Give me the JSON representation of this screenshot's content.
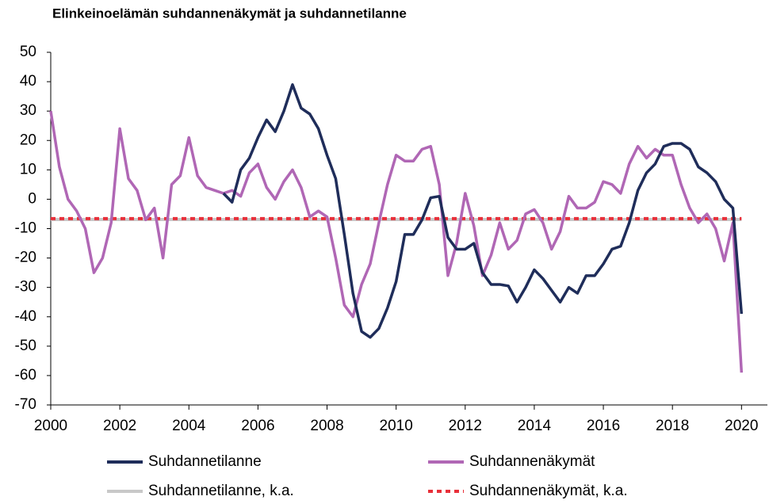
{
  "chart_data": {
    "type": "line",
    "title": "Elinkeinoelämän suhdannenäkymät ja suhdannetilanne",
    "x": [
      2000,
      2000.25,
      2000.5,
      2000.75,
      2001,
      2001.25,
      2001.5,
      2001.75,
      2002,
      2002.25,
      2002.5,
      2002.75,
      2003,
      2003.25,
      2003.5,
      2003.75,
      2004,
      2004.25,
      2004.5,
      2004.75,
      2005,
      2005.25,
      2005.5,
      2005.75,
      2006,
      2006.25,
      2006.5,
      2006.75,
      2007,
      2007.25,
      2007.5,
      2007.75,
      2008,
      2008.25,
      2008.5,
      2008.75,
      2009,
      2009.25,
      2009.5,
      2009.75,
      2010,
      2010.25,
      2010.5,
      2010.75,
      2011,
      2011.25,
      2011.5,
      2011.75,
      2012,
      2012.25,
      2012.5,
      2012.75,
      2013,
      2013.25,
      2013.5,
      2013.75,
      2014,
      2014.25,
      2014.5,
      2014.75,
      2015,
      2015.25,
      2015.5,
      2015.75,
      2016,
      2016.25,
      2016.5,
      2016.75,
      2017,
      2017.25,
      2017.5,
      2017.75,
      2018,
      2018.25,
      2018.5,
      2018.75,
      2019,
      2019.25,
      2019.5,
      2019.75,
      2020
    ],
    "series": [
      {
        "name": "Suhdannetilanne",
        "color": "#1f2d5a",
        "values": [
          null,
          null,
          null,
          null,
          null,
          null,
          null,
          null,
          null,
          null,
          null,
          null,
          null,
          null,
          null,
          null,
          null,
          null,
          null,
          null,
          2,
          -1,
          10,
          14,
          21,
          27,
          23,
          30,
          39,
          31,
          29,
          24,
          15,
          7,
          -12,
          -32,
          -45,
          -47,
          -44,
          -37,
          -28,
          -12,
          -12,
          -7,
          0.5,
          1,
          -13,
          -17,
          -17,
          -15,
          -25,
          -29,
          -29,
          -29.5,
          -35,
          -30,
          -24,
          -27,
          -31,
          -35,
          -30,
          -32,
          -26,
          -26,
          -22,
          -17,
          -16,
          -8,
          3,
          9,
          12,
          18,
          19,
          19,
          17,
          11,
          9,
          6,
          0,
          -3,
          -39
        ]
      },
      {
        "name": "Suhdannenäkymät",
        "color": "#b067b5",
        "values": [
          30,
          11,
          0,
          -4,
          -10,
          -25,
          -20,
          -8,
          24,
          7,
          3,
          -7,
          -3,
          -20,
          5,
          8,
          21,
          8,
          4,
          3,
          2,
          3,
          1,
          9,
          12,
          4,
          0,
          6,
          10,
          4,
          -6,
          -4,
          -6,
          -20,
          -36,
          -40,
          -29,
          -22,
          -8,
          5,
          15,
          13,
          13,
          17,
          18,
          5,
          -26,
          -15,
          2,
          -9,
          -26,
          -19,
          -8,
          -17,
          -14,
          -5,
          -3.5,
          -8,
          -17,
          -11,
          1,
          -3,
          -3,
          -1,
          6,
          5,
          2,
          12,
          18,
          14,
          17,
          15,
          15,
          5,
          -3,
          -8,
          -5,
          -10,
          -21,
          -8,
          -59
        ]
      },
      {
        "name": "Suhdannetilanne, k.a.",
        "color": "#c8c8c8",
        "value": -6.9,
        "style": "solid"
      },
      {
        "name": "Suhdannenäkymät, k.a.",
        "color": "#e8303a",
        "value": -6.6,
        "style": "dotted"
      }
    ],
    "xlim": [
      2000,
      2020.75
    ],
    "xticks": [
      2000,
      2002,
      2004,
      2006,
      2008,
      2010,
      2012,
      2014,
      2016,
      2018,
      2020
    ],
    "ylim": [
      -70,
      50
    ],
    "yticks": [
      -70,
      -60,
      -50,
      -40,
      -30,
      -20,
      -10,
      0,
      10,
      20,
      30,
      40,
      50
    ],
    "grid": false
  }
}
